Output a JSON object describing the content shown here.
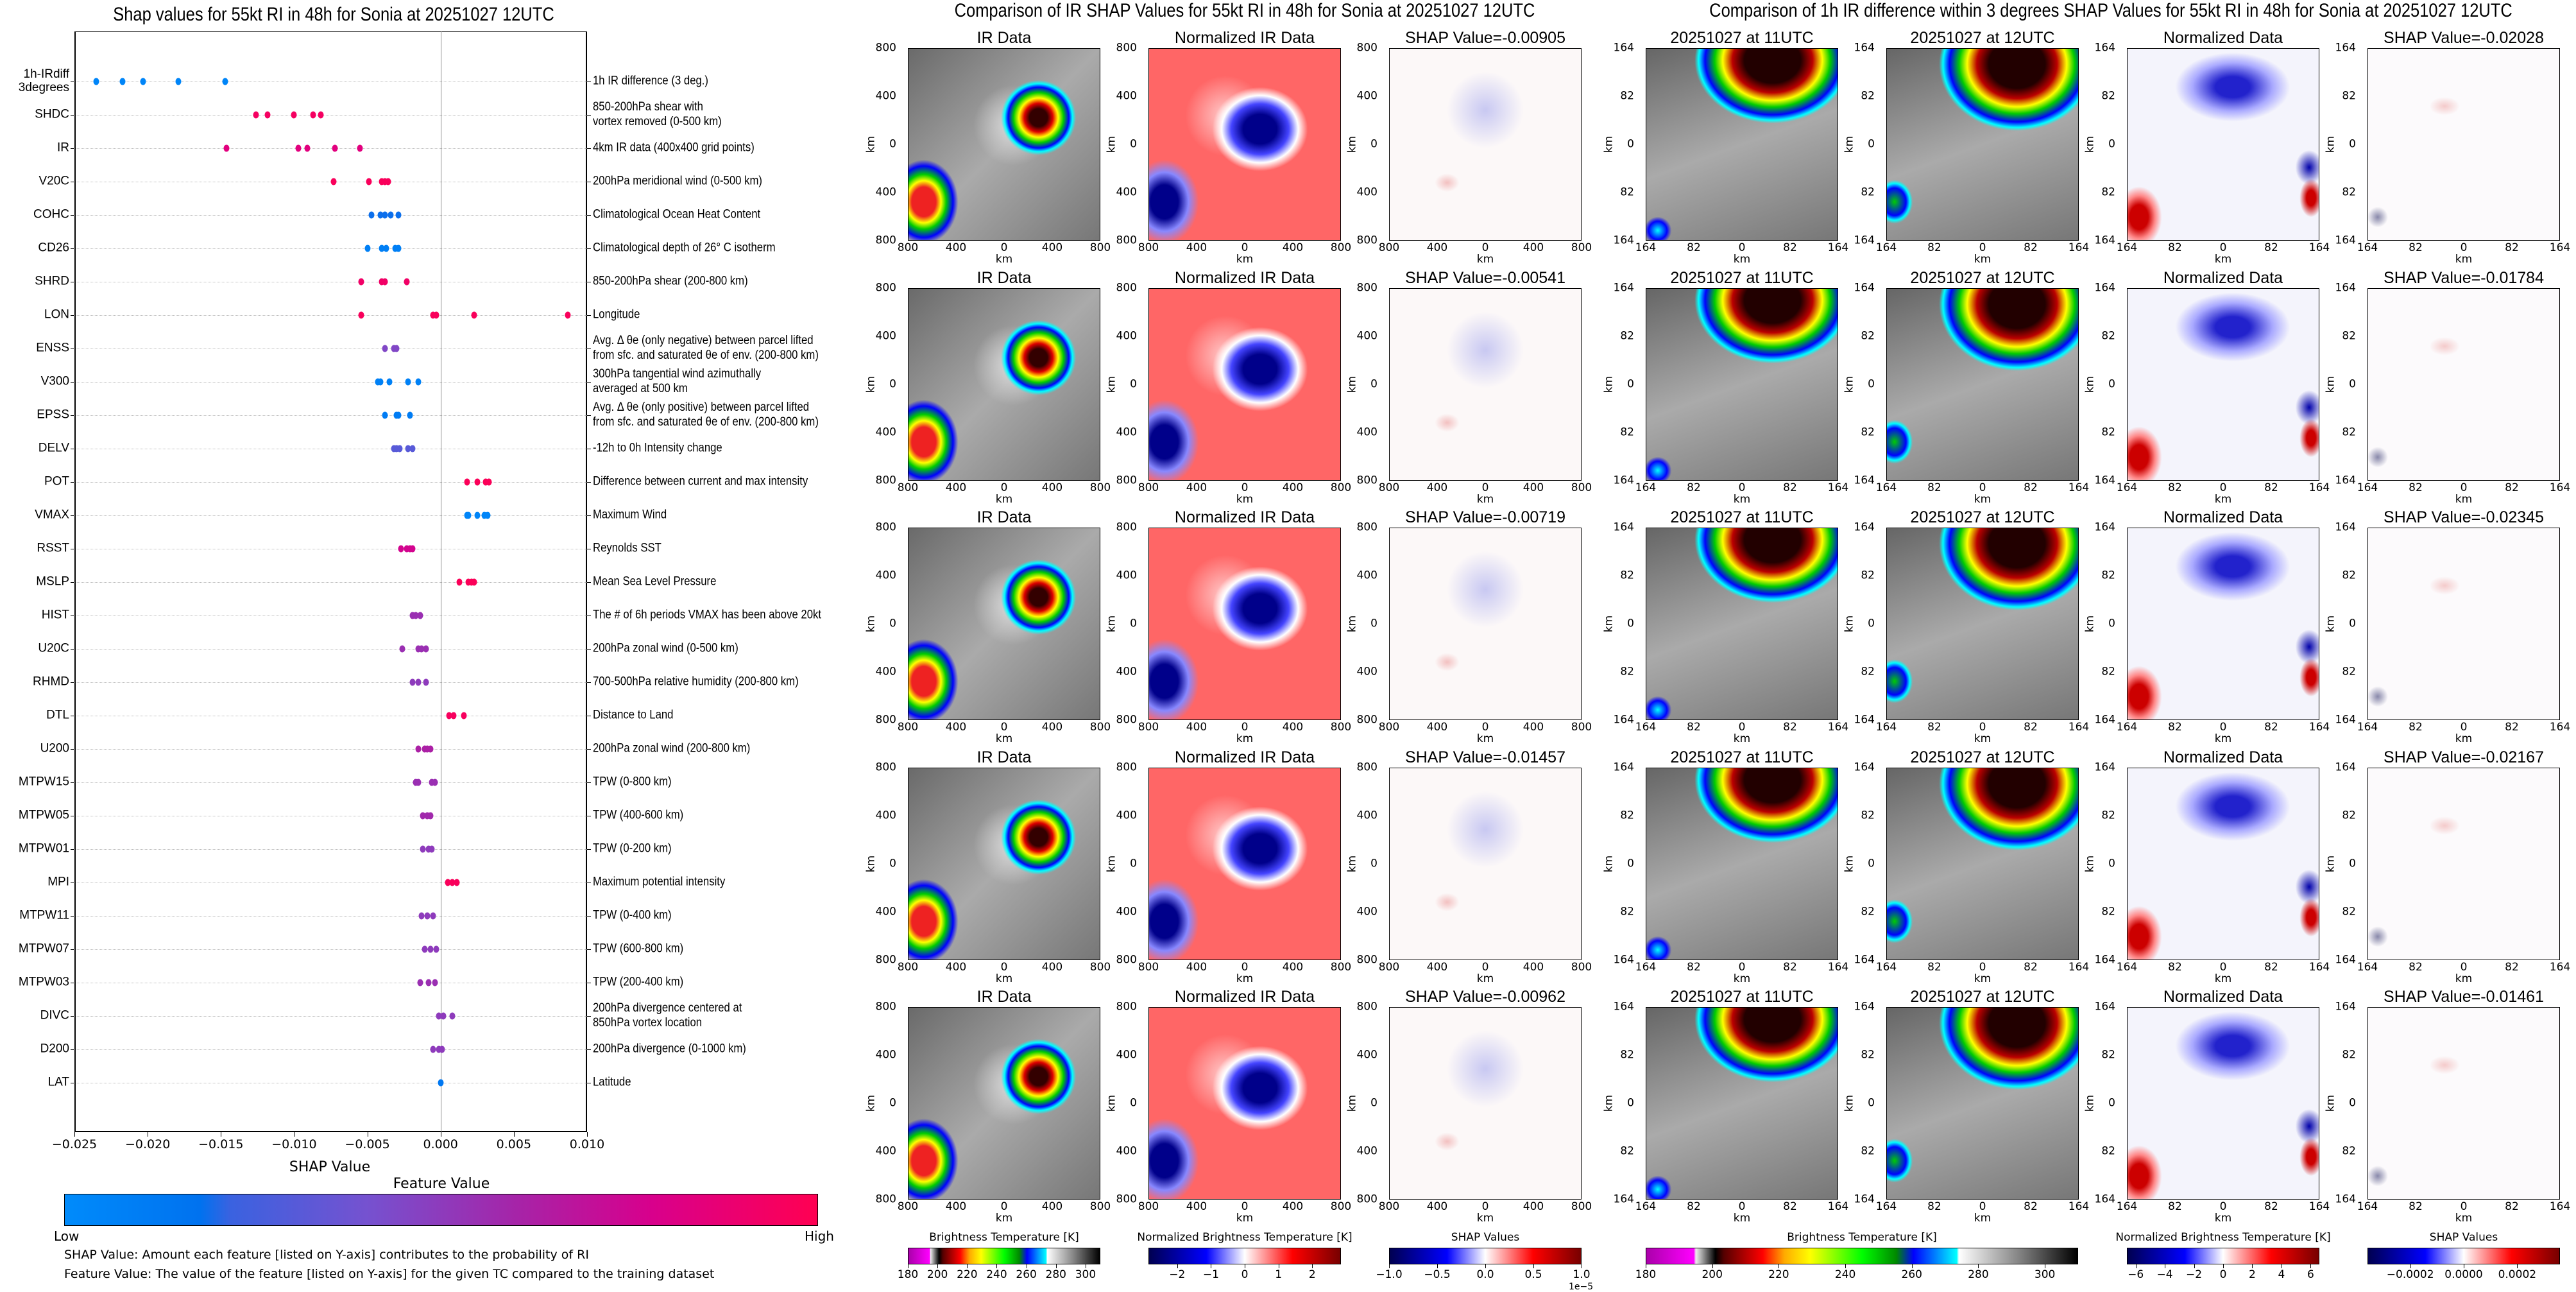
{
  "left_chart": {
    "title": "Shap values for 55kt RI in 48h for Sonia at 20251027 12UTC",
    "xlabel": "SHAP Value",
    "xlim": [
      -0.025,
      0.01
    ],
    "xticks": [
      "−0.025",
      "−0.020",
      "−0.015",
      "−0.010",
      "−0.005",
      "0.000",
      "0.005",
      "0.010"
    ],
    "colorbar_title": "Feature Value",
    "colorbar_low": "Low",
    "colorbar_high": "High",
    "note1": "SHAP Value: Amount each feature [listed on Y-axis] contributes to the probability of RI",
    "note2": "Feature Value: The value of the feature [listed on Y-axis] for the given TC compared to the training dataset",
    "colors": {
      "low": "#008bfb",
      "high": "#ff0052"
    }
  },
  "chart_data": {
    "type": "scatter",
    "title": "Shap values for 55kt RI in 48h for Sonia at 20251027 12UTC",
    "xlabel": "SHAP Value",
    "xlim": [
      -0.025,
      0.01
    ],
    "features": [
      {
        "name": "1h-IRdiff\n3degrees",
        "desc": "1h IR difference (3 deg.)",
        "fv": 0.05,
        "values": [
          -0.0235,
          -0.0217,
          -0.0203,
          -0.0179,
          -0.0147
        ]
      },
      {
        "name": "SHDC",
        "desc": "850-200hPa shear with\nvortex removed (0-500 km)",
        "fv": 0.95,
        "values": [
          -0.0126,
          -0.0118,
          -0.01,
          -0.0087,
          -0.0082
        ]
      },
      {
        "name": "IR",
        "desc": "4km IR data (400x400 grid points)",
        "fv": 0.85,
        "values": [
          -0.0146,
          -0.0097,
          -0.0091,
          -0.0072,
          -0.0055
        ]
      },
      {
        "name": "V20C",
        "desc": "200hPa meridional wind (0-500 km)",
        "fv": 0.97,
        "values": [
          -0.0073,
          -0.0049,
          -0.004,
          -0.0038,
          -0.0036
        ]
      },
      {
        "name": "COHC",
        "desc": "Climatological Ocean Heat Content",
        "fv": 0.22,
        "values": [
          -0.0047,
          -0.0041,
          -0.0038,
          -0.0034,
          -0.0029
        ]
      },
      {
        "name": "CD26",
        "desc": "Climatological depth of 26° C isotherm",
        "fv": 0.1,
        "values": [
          -0.005,
          -0.004,
          -0.0037,
          -0.0031,
          -0.0029
        ]
      },
      {
        "name": "SHRD",
        "desc": "850-200hPa shear (200-800 km)",
        "fv": 0.93,
        "values": [
          -0.0054,
          -0.004,
          -0.0038,
          -0.0023
        ]
      },
      {
        "name": "LON",
        "desc": "Longitude",
        "fv": 0.97,
        "values": [
          -0.0054,
          -0.0005,
          -0.0003,
          0.0023,
          0.0087
        ]
      },
      {
        "name": "ENSS",
        "desc": "Avg. Δ θe (only negative) between parcel lifted\nfrom sfc. and saturated θe of env. (200-800 km)",
        "fv": 0.45,
        "values": [
          -0.0038,
          -0.0032,
          -0.003
        ]
      },
      {
        "name": "V300",
        "desc": "300hPa tangential wind azimuthally\naveraged at 500 km",
        "fv": 0.08,
        "values": [
          -0.0043,
          -0.0041,
          -0.0035,
          -0.0022,
          -0.0015
        ]
      },
      {
        "name": "EPSS",
        "desc": "Avg. Δ θe (only positive) between parcel lifted\nfrom sfc. and saturated θe of env. (200-800 km)",
        "fv": 0.12,
        "values": [
          -0.0038,
          -0.003,
          -0.0029,
          -0.0021
        ]
      },
      {
        "name": "DELV",
        "desc": "-12h to 0h Intensity change",
        "fv": 0.35,
        "values": [
          -0.0032,
          -0.003,
          -0.0028,
          -0.0022,
          -0.0019
        ]
      },
      {
        "name": "POT",
        "desc": "Difference between current and max intensity",
        "fv": 0.98,
        "values": [
          0.0018,
          0.0025,
          0.0031,
          0.0033
        ]
      },
      {
        "name": "VMAX",
        "desc": "Maximum Wind",
        "fv": 0.05,
        "values": [
          0.0018,
          0.0019,
          0.0025,
          0.003,
          0.0032
        ]
      },
      {
        "name": "RSST",
        "desc": "Reynolds SST",
        "fv": 0.78,
        "values": [
          -0.0027,
          -0.0023,
          -0.0021,
          -0.0019
        ]
      },
      {
        "name": "MSLP",
        "desc": "Mean Sea Level Pressure",
        "fv": 0.98,
        "values": [
          0.0013,
          0.0019,
          0.0021,
          0.0023
        ]
      },
      {
        "name": "HIST",
        "desc": "The # of 6h periods VMAX has been above 20kt",
        "fv": 0.55,
        "values": [
          -0.0019,
          -0.0017,
          -0.0014
        ]
      },
      {
        "name": "U20C",
        "desc": "200hPa zonal wind (0-500 km)",
        "fv": 0.55,
        "values": [
          -0.0026,
          -0.0015,
          -0.0013,
          -0.001
        ]
      },
      {
        "name": "RHMD",
        "desc": "700-500hPa relative humidity (200-800 km)",
        "fv": 0.5,
        "values": [
          -0.0019,
          -0.0015,
          -0.001
        ]
      },
      {
        "name": "DTL",
        "desc": "Distance to Land",
        "fv": 0.96,
        "values": [
          0.0006,
          0.0009,
          0.0016
        ]
      },
      {
        "name": "U200",
        "desc": "200hPa zonal wind (200-800 km)",
        "fv": 0.62,
        "values": [
          -0.0015,
          -0.0011,
          -0.0009,
          -0.0007
        ]
      },
      {
        "name": "MTPW15",
        "desc": "TPW (0-800 km)",
        "fv": 0.55,
        "values": [
          -0.0017,
          -0.0015,
          -0.0006,
          -0.0004
        ]
      },
      {
        "name": "MTPW05",
        "desc": "TPW (400-600 km)",
        "fv": 0.58,
        "values": [
          -0.0012,
          -0.0009,
          -0.0007
        ]
      },
      {
        "name": "MTPW01",
        "desc": "TPW (0-200 km)",
        "fv": 0.5,
        "values": [
          -0.0012,
          -0.0008,
          -0.0006
        ]
      },
      {
        "name": "MPI",
        "desc": "Maximum potential intensity",
        "fv": 0.97,
        "values": [
          0.0005,
          0.0008,
          0.0011
        ]
      },
      {
        "name": "MTPW11",
        "desc": "TPW (0-400 km)",
        "fv": 0.5,
        "values": [
          -0.0013,
          -0.0009,
          -0.0005
        ]
      },
      {
        "name": "MTPW07",
        "desc": "TPW (600-800 km)",
        "fv": 0.5,
        "values": [
          -0.0011,
          -0.0007,
          -0.0003
        ]
      },
      {
        "name": "MTPW03",
        "desc": "TPW (200-400 km)",
        "fv": 0.55,
        "values": [
          -0.0014,
          -0.0008,
          -0.0004
        ]
      },
      {
        "name": "DIVC",
        "desc": "200hPa divergence centered at\n850hPa vortex location",
        "fv": 0.5,
        "values": [
          -0.0001,
          0.0002,
          0.0008
        ]
      },
      {
        "name": "D200",
        "desc": "200hPa divergence (0-1000 km)",
        "fv": 0.5,
        "values": [
          -0.0005,
          -0.0001,
          0.0001
        ]
      },
      {
        "name": "LAT",
        "desc": "Latitude",
        "fv": 0.15,
        "values": [
          0.0
        ]
      }
    ]
  },
  "middle": {
    "title": "Comparison of IR SHAP Values for 55kt RI in 48h for Sonia at 20251027 12UTC",
    "axis_label": "km",
    "ticks": [
      "800",
      "400",
      "0",
      "400",
      "800"
    ],
    "shap_values": [
      "SHAP Value=-0.00905",
      "SHAP Value=-0.00541",
      "SHAP Value=-0.00719",
      "SHAP Value=-0.01457",
      "SHAP Value=-0.00962"
    ],
    "col_titles": [
      "IR Data",
      "Normalized IR Data"
    ]
  },
  "right": {
    "title": "Comparison of 1h IR difference within 3 degrees SHAP Values for 55kt RI in 48h for Sonia at 20251027 12UTC",
    "axis_label": "km",
    "ticks": [
      "164",
      "82",
      "0",
      "82",
      "164"
    ],
    "shap_values": [
      "SHAP Value=-0.02028",
      "SHAP Value=-0.01784",
      "SHAP Value=-0.02345",
      "SHAP Value=-0.02167",
      "SHAP Value=-0.01461"
    ],
    "col_titles": [
      "20251027 at 11UTC",
      "20251027 at 12UTC",
      "Normalized Data"
    ]
  },
  "colorbars": [
    {
      "label": "Brightness Temperature [K]",
      "ticks": [
        "180",
        "200",
        "220",
        "240",
        "260",
        "280",
        "300"
      ],
      "tick_values": [
        180,
        200,
        220,
        240,
        260,
        280,
        300
      ],
      "range": [
        180,
        310
      ]
    },
    {
      "label": "Normalized Brightness Temperature [K]",
      "ticks": [
        "−2",
        "−1",
        "0",
        "1",
        "2"
      ],
      "tick_values": [
        -2,
        -1,
        0,
        1,
        2
      ],
      "range": [
        -2.85,
        2.85
      ]
    },
    {
      "label": "SHAP Values",
      "ticks": [
        "−1.0",
        "−0.5",
        "0.0",
        "0.5",
        "1.0"
      ],
      "tick_values": [
        -1,
        -0.5,
        0,
        0.5,
        1
      ],
      "range": [
        -1,
        1
      ],
      "offset": "1e−5"
    },
    {
      "label": "Brightness Temperature [K]",
      "ticks": [
        "180",
        "200",
        "220",
        "240",
        "260",
        "280",
        "300"
      ],
      "tick_values": [
        180,
        200,
        220,
        240,
        260,
        280,
        300
      ],
      "range": [
        180,
        310
      ]
    },
    {
      "label": "Normalized Brightness Temperature [K]",
      "ticks": [
        "−6",
        "−4",
        "−2",
        "0",
        "2",
        "4",
        "6"
      ],
      "tick_values": [
        -6,
        -4,
        -2,
        0,
        2,
        4,
        6
      ],
      "range": [
        -6.6,
        6.6
      ]
    },
    {
      "label": "SHAP Values",
      "ticks": [
        "−0.0002",
        "0.0000",
        "0.0002"
      ],
      "tick_values": [
        -0.0002,
        0,
        0.0002
      ],
      "range": [
        -0.00036,
        0.00036
      ]
    }
  ]
}
